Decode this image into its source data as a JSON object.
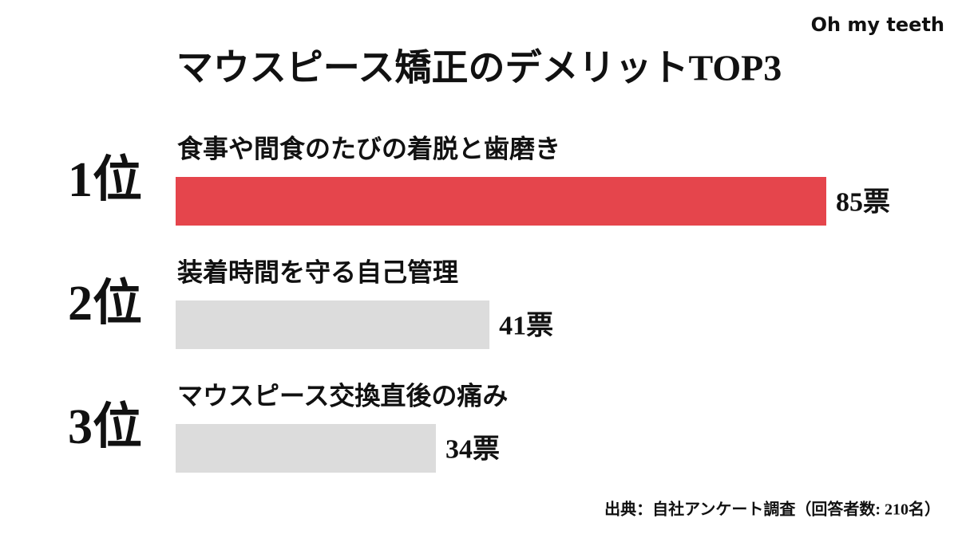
{
  "brand": "Oh my teeth",
  "chart_data": {
    "type": "bar",
    "orientation": "horizontal",
    "title": "マウスピース矯正のデメリットTOP3",
    "ranks": [
      "1位",
      "2位",
      "3位"
    ],
    "categories": [
      "食事や間食のたびの着脱と歯磨き",
      "装着時間を守る自己管理",
      "マウスピース交換直後の痛み"
    ],
    "values": [
      85,
      41,
      34
    ],
    "value_labels": [
      "85票",
      "41票",
      "34票"
    ],
    "colors": [
      "#e5454c",
      "#dcdcdc",
      "#dcdcdc"
    ],
    "source": "出典：自社アンケート調査（回答者数: 210名）"
  }
}
